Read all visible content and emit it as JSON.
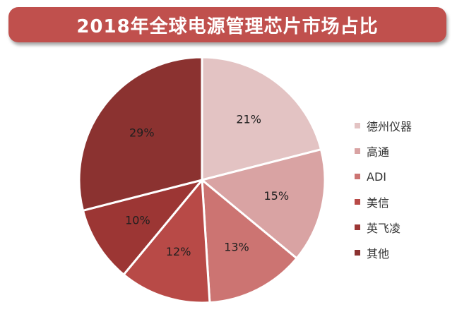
{
  "title": "2018年全球电源管理芯片市场占比",
  "chart_data": {
    "type": "pie",
    "title": "2018年全球电源管理芯片市场占比",
    "categories": [
      "德州仪器",
      "高通",
      "ADI",
      "美信",
      "英飞凌",
      "其他"
    ],
    "values": [
      21,
      15,
      13,
      12,
      10,
      29
    ],
    "value_labels": [
      "21%",
      "15%",
      "13%",
      "12%",
      "10%",
      "29%"
    ],
    "colors": [
      "#e3c3c3",
      "#d9a3a3",
      "#cc7472",
      "#b84a47",
      "#9c3634",
      "#8b3230"
    ],
    "start": "12 o'clock",
    "direction": "clockwise",
    "legend_position": "right"
  }
}
